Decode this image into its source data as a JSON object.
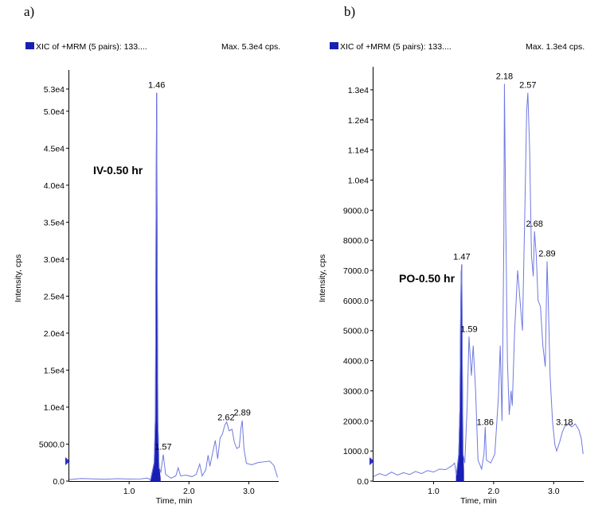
{
  "chart_data": [
    {
      "type": "line",
      "panel_label": "a)",
      "legend_label": "XIC of +MRM (5 pairs): 133....",
      "max_label": "Max. 5.3e4 cps.",
      "annotation": "IV-0.50 hr",
      "xlabel": "Time, min",
      "ylabel": "Intensity, cps",
      "xlim": [
        0,
        3.5
      ],
      "ylim": [
        0,
        54500
      ],
      "x_ticks": [
        {
          "v": 1.0,
          "label": "1.0"
        },
        {
          "v": 2.0,
          "label": "2.0"
        },
        {
          "v": 3.0,
          "label": "3.0"
        }
      ],
      "y_ticks": [
        {
          "v": 0,
          "label": "0.0"
        },
        {
          "v": 5000,
          "label": "5000.0"
        },
        {
          "v": 10000,
          "label": "1.0e4"
        },
        {
          "v": 15000,
          "label": "1.5e4"
        },
        {
          "v": 20000,
          "label": "2.0e4"
        },
        {
          "v": 25000,
          "label": "2.5e4"
        },
        {
          "v": 30000,
          "label": "3.0e4"
        },
        {
          "v": 35000,
          "label": "3.5e4"
        },
        {
          "v": 40000,
          "label": "4.0e4"
        },
        {
          "v": 45000,
          "label": "4.5e4"
        },
        {
          "v": 50000,
          "label": "5.0e4"
        },
        {
          "v": 53000,
          "label": "5.3e4"
        }
      ],
      "peak_labels": [
        {
          "x": 1.46,
          "y": 52500,
          "label": "1.46"
        },
        {
          "x": 1.57,
          "y": 3600,
          "label": "1.57"
        },
        {
          "x": 2.62,
          "y": 7600,
          "label": "2.62"
        },
        {
          "x": 2.89,
          "y": 8200,
          "label": "2.89"
        }
      ],
      "filled_peak": [
        [
          1.36,
          200
        ],
        [
          1.42,
          2500
        ],
        [
          1.44,
          9000
        ],
        [
          1.45,
          35000
        ],
        [
          1.46,
          52500
        ],
        [
          1.47,
          28000
        ],
        [
          1.48,
          8000
        ],
        [
          1.5,
          1800
        ],
        [
          1.52,
          400
        ]
      ],
      "trace": [
        [
          0.0,
          200
        ],
        [
          0.2,
          350
        ],
        [
          0.4,
          300
        ],
        [
          0.6,
          250
        ],
        [
          0.8,
          320
        ],
        [
          1.0,
          280
        ],
        [
          1.2,
          300
        ],
        [
          1.3,
          400
        ],
        [
          1.36,
          200
        ],
        [
          1.42,
          2500
        ],
        [
          1.44,
          9000
        ],
        [
          1.45,
          35000
        ],
        [
          1.46,
          52500
        ],
        [
          1.47,
          28000
        ],
        [
          1.48,
          8000
        ],
        [
          1.5,
          1800
        ],
        [
          1.53,
          1200
        ],
        [
          1.57,
          3600
        ],
        [
          1.61,
          900
        ],
        [
          1.7,
          400
        ],
        [
          1.78,
          700
        ],
        [
          1.82,
          1800
        ],
        [
          1.86,
          700
        ],
        [
          1.95,
          800
        ],
        [
          2.05,
          600
        ],
        [
          2.12,
          900
        ],
        [
          2.18,
          2300
        ],
        [
          2.22,
          700
        ],
        [
          2.28,
          1500
        ],
        [
          2.32,
          3500
        ],
        [
          2.35,
          2000
        ],
        [
          2.4,
          4000
        ],
        [
          2.44,
          5500
        ],
        [
          2.48,
          3000
        ],
        [
          2.52,
          5800
        ],
        [
          2.56,
          6400
        ],
        [
          2.6,
          7600
        ],
        [
          2.63,
          8000
        ],
        [
          2.67,
          6800
        ],
        [
          2.72,
          7000
        ],
        [
          2.76,
          5200
        ],
        [
          2.8,
          4400
        ],
        [
          2.84,
          4600
        ],
        [
          2.87,
          7200
        ],
        [
          2.89,
          8200
        ],
        [
          2.92,
          4300
        ],
        [
          2.96,
          2400
        ],
        [
          3.05,
          2200
        ],
        [
          3.15,
          2500
        ],
        [
          3.25,
          2600
        ],
        [
          3.35,
          2700
        ],
        [
          3.42,
          2100
        ],
        [
          3.48,
          500
        ]
      ],
      "color": "#1a1fb4",
      "trace_color": "#6f79e0"
    },
    {
      "type": "line",
      "panel_label": "b)",
      "legend_label": "XIC of +MRM (5 pairs): 133....",
      "max_label": "Max. 1.3e4 cps.",
      "annotation": "PO-0.50 hr",
      "xlabel": "Time, min",
      "ylabel": "Intensity, cps",
      "xlim": [
        0,
        3.5
      ],
      "ylim": [
        0,
        13500
      ],
      "x_ticks": [
        {
          "v": 1.0,
          "label": "1.0"
        },
        {
          "v": 2.0,
          "label": "2.0"
        },
        {
          "v": 3.0,
          "label": "3.0"
        }
      ],
      "y_ticks": [
        {
          "v": 0,
          "label": "0.0"
        },
        {
          "v": 1000,
          "label": "1000.0"
        },
        {
          "v": 2000,
          "label": "2000.0"
        },
        {
          "v": 3000,
          "label": "3000.0"
        },
        {
          "v": 4000,
          "label": "4000.0"
        },
        {
          "v": 5000,
          "label": "5000.0"
        },
        {
          "v": 6000,
          "label": "6000.0"
        },
        {
          "v": 7000,
          "label": "7000.0"
        },
        {
          "v": 8000,
          "label": "8000.0"
        },
        {
          "v": 9000,
          "label": "9000.0"
        },
        {
          "v": 10000,
          "label": "1.0e4"
        },
        {
          "v": 11000,
          "label": "1.1e4"
        },
        {
          "v": 12000,
          "label": "1.2e4"
        },
        {
          "v": 13000,
          "label": "1.3e4"
        }
      ],
      "peak_labels": [
        {
          "x": 1.47,
          "y": 7200,
          "label": "1.47"
        },
        {
          "x": 1.59,
          "y": 4800,
          "label": "1.59"
        },
        {
          "x": 1.86,
          "y": 1700,
          "label": "1.86"
        },
        {
          "x": 2.18,
          "y": 13200,
          "label": "2.18"
        },
        {
          "x": 2.57,
          "y": 12900,
          "label": "2.57"
        },
        {
          "x": 2.68,
          "y": 8300,
          "label": "2.68"
        },
        {
          "x": 2.89,
          "y": 7300,
          "label": "2.89"
        },
        {
          "x": 3.18,
          "y": 1700,
          "label": "3.18"
        }
      ],
      "filled_peak": [
        [
          1.38,
          200
        ],
        [
          1.42,
          900
        ],
        [
          1.44,
          2500
        ],
        [
          1.45,
          5200
        ],
        [
          1.46,
          6900
        ],
        [
          1.47,
          7200
        ],
        [
          1.48,
          3500
        ],
        [
          1.49,
          900
        ],
        [
          1.5,
          350
        ]
      ],
      "trace": [
        [
          0.0,
          150
        ],
        [
          0.1,
          250
        ],
        [
          0.2,
          180
        ],
        [
          0.3,
          300
        ],
        [
          0.4,
          200
        ],
        [
          0.5,
          280
        ],
        [
          0.6,
          220
        ],
        [
          0.7,
          320
        ],
        [
          0.8,
          250
        ],
        [
          0.9,
          350
        ],
        [
          1.0,
          300
        ],
        [
          1.1,
          400
        ],
        [
          1.2,
          380
        ],
        [
          1.3,
          500
        ],
        [
          1.35,
          600
        ],
        [
          1.38,
          200
        ],
        [
          1.42,
          900
        ],
        [
          1.44,
          2500
        ],
        [
          1.45,
          5200
        ],
        [
          1.46,
          6900
        ],
        [
          1.47,
          7200
        ],
        [
          1.48,
          3500
        ],
        [
          1.49,
          900
        ],
        [
          1.52,
          600
        ],
        [
          1.56,
          2500
        ],
        [
          1.59,
          4800
        ],
        [
          1.63,
          3500
        ],
        [
          1.66,
          4500
        ],
        [
          1.7,
          3000
        ],
        [
          1.74,
          700
        ],
        [
          1.8,
          400
        ],
        [
          1.84,
          900
        ],
        [
          1.86,
          1800
        ],
        [
          1.88,
          700
        ],
        [
          1.95,
          600
        ],
        [
          2.02,
          900
        ],
        [
          2.08,
          2800
        ],
        [
          2.11,
          4500
        ],
        [
          2.14,
          2000
        ],
        [
          2.17,
          8000
        ],
        [
          2.18,
          13200
        ],
        [
          2.2,
          9000
        ],
        [
          2.23,
          4000
        ],
        [
          2.26,
          2200
        ],
        [
          2.29,
          3000
        ],
        [
          2.31,
          2500
        ],
        [
          2.35,
          5000
        ],
        [
          2.4,
          7000
        ],
        [
          2.44,
          6000
        ],
        [
          2.48,
          5000
        ],
        [
          2.52,
          9000
        ],
        [
          2.55,
          12300
        ],
        [
          2.57,
          12900
        ],
        [
          2.6,
          11000
        ],
        [
          2.63,
          7500
        ],
        [
          2.66,
          6800
        ],
        [
          2.68,
          8300
        ],
        [
          2.71,
          7500
        ],
        [
          2.74,
          6000
        ],
        [
          2.78,
          5800
        ],
        [
          2.82,
          4500
        ],
        [
          2.86,
          3800
        ],
        [
          2.89,
          7300
        ],
        [
          2.91,
          6000
        ],
        [
          2.94,
          3500
        ],
        [
          2.98,
          2000
        ],
        [
          3.02,
          1200
        ],
        [
          3.05,
          1000
        ],
        [
          3.1,
          1300
        ],
        [
          3.14,
          1600
        ],
        [
          3.18,
          1800
        ],
        [
          3.24,
          1900
        ],
        [
          3.3,
          1800
        ],
        [
          3.36,
          1900
        ],
        [
          3.42,
          1700
        ],
        [
          3.46,
          1400
        ],
        [
          3.49,
          900
        ]
      ],
      "color": "#1a1fb4",
      "trace_color": "#6f79e0"
    }
  ]
}
